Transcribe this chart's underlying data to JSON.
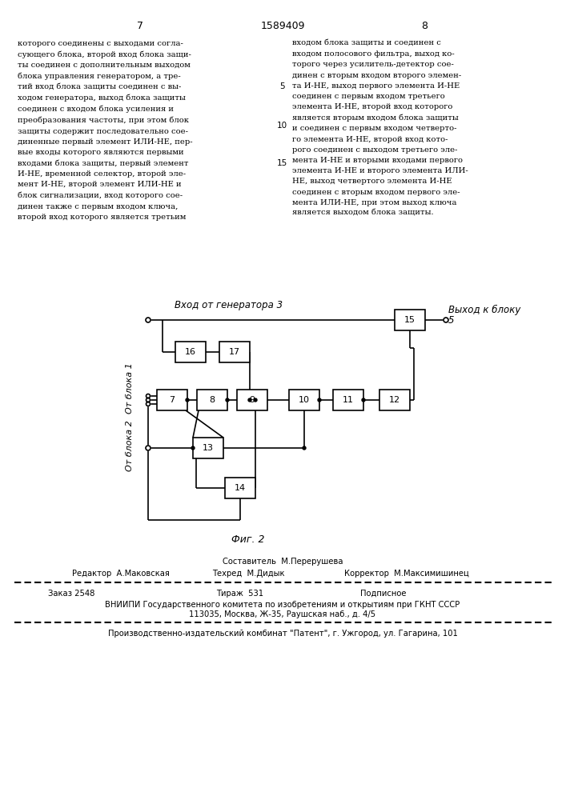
{
  "page_number_left": "7",
  "page_number_center": "1589409",
  "page_number_right": "8",
  "text_left": "которого соединены с выходами согла-\nсующего блока, второй вход блока защи-\nты соединен с дополнительным выходом\nблока управления генератором, а тре-\nтий вход блока защиты соединен с вы-\nходом генератора, выход блока защиты\nсоединен с входом блока усиления и\nпреобразования частоты, при этом блок\nзащиты содержит последовательно сое-\nдиненные первый элемент ИЛИ-НЕ, пер-\nвые входы которого являются первыми\nвходами блока защиты, первый элемент\nИ-НЕ, временной селектор, второй эле-\nмент И-НЕ, второй элемент ИЛИ-НЕ и\nблок сигнализации, вход которого сое-\nдинен также с первым входом ключа,\nвторой вход которого является третьим",
  "text_right": "входом блока защиты и соединен с\nвходом полосового фильтра, выход ко-\nторого через усилитель-детектор сое-\nдинен с вторым входом второго элемен-\nта И-НЕ, выход первого элемента И-НЕ\nсоединен с первым входом третьего\nэлемента И-НЕ, второй вход которого\nявляется вторым входом блока защиты\nи соединен с первым входом четверто-\nго элемента И-НЕ, второй вход кото-\nрого соединен с выходом третьего эле-\nмента И-НЕ и вторыми входами первого\nэлемента И-НЕ и второго элемента ИЛИ-\nНЕ, выход четвертого элемента И-НЕ\nсоединен с вторым входом первого эле-\nмента ИЛИ-НЕ, при этом выход ключа\nявляется выходом блока защиты.",
  "fig_label": "Фиг. 2",
  "label_input_gen": "Вход от генератора 3",
  "label_output_1": "Выход к блоку",
  "label_output_2": "5",
  "label_from_block1": "От блока 1",
  "label_from_block2": "От блока 2",
  "composer_line": "Составитель  М.Перерушева",
  "editor_label": "Редактор  А.Маковская",
  "techred_label": "Техред  М.Дидык",
  "corrector_label": "Корректор  М.Максимишинец",
  "order_label": "Заказ 2548",
  "tirazh_label": "Тираж  531",
  "podpisnoe_label": "Подписное",
  "vniip_line1": "ВНИИПИ Государственного комитета по изобретениям и открытиям при ГКНТ СССР",
  "vniip_line2": "113035, Москва, Ж-35, Раушская наб., д. 4/5",
  "publisher_line": "Производственно-издательский комбинат \"Патент\", г. Ужгород, ул. Гагарина, 101"
}
